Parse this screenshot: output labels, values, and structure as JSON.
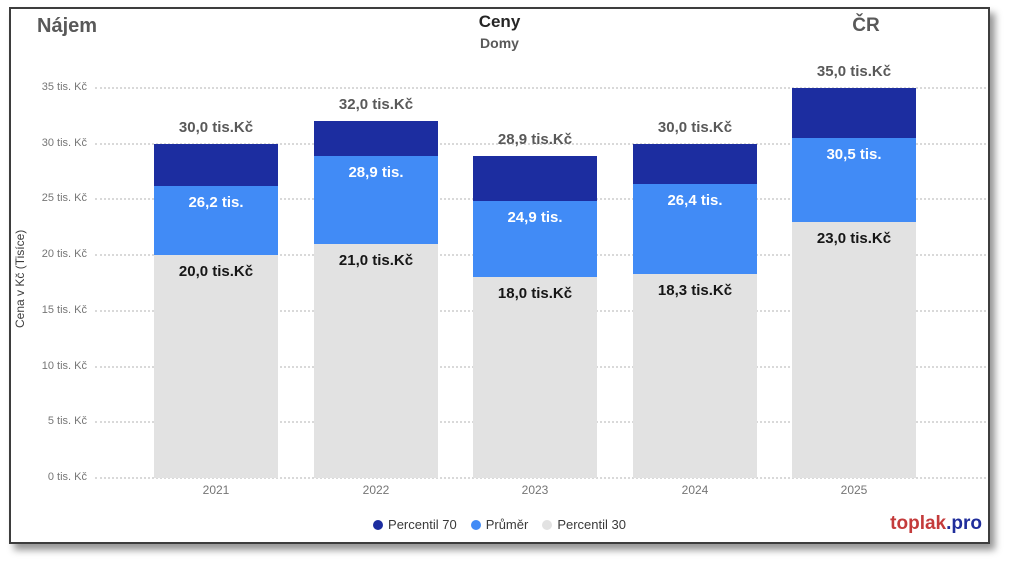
{
  "header": {
    "title_left": "Nájem",
    "title_center": "Ceny",
    "subtitle_center": "Domy",
    "title_right": "ČR"
  },
  "brand": {
    "name": "toplak",
    "tld": ".pro"
  },
  "colors": {
    "percentil70": "#1c2da0",
    "prumer": "#418bf6",
    "percentil30": "#e2e2e2",
    "grid": "#d9d9d9",
    "axis_text": "#767676",
    "title_gray": "#595959",
    "title_dark": "#252525",
    "brand_red": "#c43b3b",
    "brand_blue": "#1f2d9b",
    "card_border": "#3d3d3d"
  },
  "chart_data": {
    "type": "bar",
    "variant": "overlapped-percentile-columns",
    "title": "Ceny",
    "subtitle": "Domy",
    "categories": [
      "2021",
      "2022",
      "2023",
      "2024",
      "2025"
    ],
    "series": [
      {
        "name": "Percentil 70",
        "color": "#1c2da0",
        "values": [
          30.0,
          32.0,
          28.9,
          30.0,
          35.0
        ],
        "labels": [
          "30,0 tis.Kč",
          "32,0 tis.Kč",
          "28,9 tis.Kč",
          "30,0 tis.Kč",
          "35,0 tis.Kč"
        ]
      },
      {
        "name": "Průměr",
        "color": "#418bf6",
        "values": [
          26.2,
          28.9,
          24.9,
          26.4,
          30.5
        ],
        "labels": [
          "26,2 tis.",
          "28,9 tis.",
          "24,9 tis.",
          "26,4 tis.",
          "30,5 tis."
        ]
      },
      {
        "name": "Percentil 30",
        "color": "#e2e2e2",
        "values": [
          20.0,
          21.0,
          18.0,
          18.3,
          23.0
        ],
        "labels": [
          "20,0 tis.Kč",
          "21,0 tis.Kč",
          "18,0 tis.Kč",
          "18,3 tis.Kč",
          "23,0 tis.Kč"
        ]
      }
    ],
    "ylabel": "Cena v Kč (Tisíce)",
    "ylim": [
      0,
      35
    ],
    "yticks": [
      0,
      5,
      10,
      15,
      20,
      25,
      30,
      35
    ],
    "ytick_labels": [
      "0 tis. Kč",
      "5 tis. Kč",
      "10 tis. Kč",
      "15 tis. Kč",
      "20 tis. Kč",
      "25 tis. Kč",
      "30 tis. Kč",
      "35 tis. Kč"
    ],
    "grid": true,
    "legend": [
      "Percentil 70",
      "Průměr",
      "Percentil 30"
    ],
    "legend_position": "bottom-center"
  }
}
